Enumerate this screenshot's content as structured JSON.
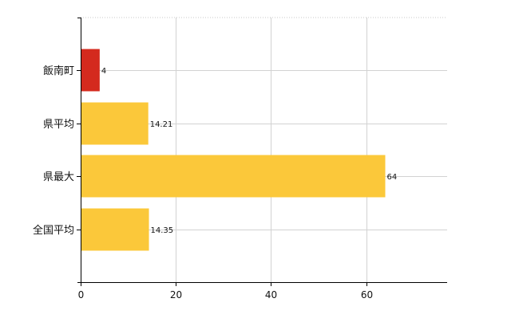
{
  "chart_data": {
    "type": "bar",
    "orientation": "horizontal",
    "categories": [
      "飯南町",
      "県平均",
      "県最大",
      "全国平均"
    ],
    "values": [
      4,
      14.21,
      64,
      14.35
    ],
    "value_labels": [
      "4",
      "14.21",
      "64",
      "14.35"
    ],
    "bar_colors": [
      "#d42a1e",
      "#fbc83a",
      "#fbc83a",
      "#fbc83a"
    ],
    "xlim": [
      0,
      77
    ],
    "x_ticks": [
      0,
      20,
      40,
      60
    ],
    "x_tick_labels": [
      "0",
      "20",
      "40",
      "60"
    ],
    "grid": true,
    "title": "",
    "xlabel": "",
    "ylabel": ""
  }
}
